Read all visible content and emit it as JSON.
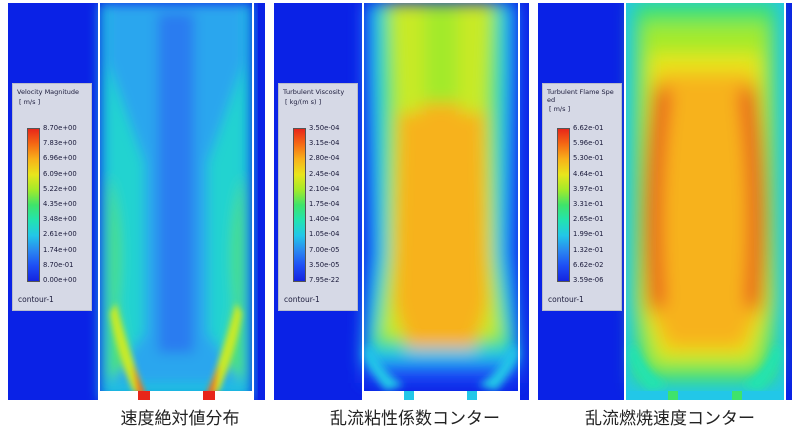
{
  "panels": [
    {
      "legend": {
        "title": "Velocity Magnitude",
        "unit": "[ m/s ]",
        "ticks": [
          "8.70e+00",
          "7.83e+00",
          "6.96e+00",
          "6.09e+00",
          "5.22e+00",
          "4.35e+00",
          "3.48e+00",
          "2.61e+00",
          "1.74e+00",
          "8.70e-01",
          "0.00e+00"
        ],
        "contour_label": "contour-1"
      },
      "caption": "速度絶対値分布"
    },
    {
      "legend": {
        "title": "Turbulent Viscosity",
        "unit": "[ kg/(m s) ]",
        "ticks": [
          "3.50e-04",
          "3.15e-04",
          "2.80e-04",
          "2.45e-04",
          "2.10e-04",
          "1.75e-04",
          "1.40e-04",
          "1.05e-04",
          "7.00e-05",
          "3.50e-05",
          "7.95e-22"
        ],
        "contour_label": "contour-1"
      },
      "caption": "乱流粘性係数コンター"
    },
    {
      "legend": {
        "title": "Turbulent Flame Spe\ned",
        "unit": "[ m/s ]",
        "ticks": [
          "6.62e-01",
          "5.96e-01",
          "5.30e-01",
          "4.64e-01",
          "3.97e-01",
          "3.31e-01",
          "2.65e-01",
          "1.99e-01",
          "1.32e-01",
          "6.62e-02",
          "3.59e-06"
        ],
        "contour_label": "contour-1"
      },
      "caption": "乱流燃焼速度コンター"
    }
  ],
  "colors": {
    "background_blue": "#0a22e6",
    "divider": "#ffffff",
    "colormap": [
      "#e8261a",
      "#f56a14",
      "#f7b21a",
      "#e8e51c",
      "#a3ea2a",
      "#3fe36a",
      "#22e3b0",
      "#22c7e8",
      "#2a88f0",
      "#1e4ef5",
      "#1424e0"
    ]
  }
}
